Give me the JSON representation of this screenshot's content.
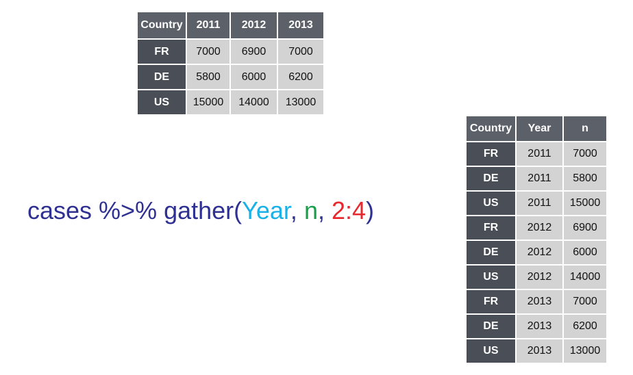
{
  "wide_table": {
    "headers": [
      "Country",
      "2011",
      "2012",
      "2013"
    ],
    "rows": [
      [
        "FR",
        "7000",
        "6900",
        "7000"
      ],
      [
        "DE",
        "5800",
        "6000",
        "6200"
      ],
      [
        "US",
        "15000",
        "14000",
        "13000"
      ]
    ]
  },
  "code": {
    "prefix": "cases %>% gather(",
    "arg_key": "Year",
    "sep1": ", ",
    "arg_value": "n",
    "sep2": ", ",
    "arg_cols": "2:4",
    "suffix": ")",
    "colors": {
      "default": "#2e3192",
      "key": "#1ab0e8",
      "value": "#1b9e4b",
      "cols": "#e8282d"
    }
  },
  "long_table": {
    "headers": [
      "Country",
      "Year",
      "n"
    ],
    "rows": [
      [
        "FR",
        "2011",
        "7000"
      ],
      [
        "DE",
        "2011",
        "5800"
      ],
      [
        "US",
        "2011",
        "15000"
      ],
      [
        "FR",
        "2012",
        "6900"
      ],
      [
        "DE",
        "2012",
        "6000"
      ],
      [
        "US",
        "2012",
        "14000"
      ],
      [
        "FR",
        "2013",
        "7000"
      ],
      [
        "DE",
        "2013",
        "6200"
      ],
      [
        "US",
        "2013",
        "13000"
      ]
    ]
  },
  "colors": {
    "header_bg": "#5c6068",
    "key_bg": "#4a4e56",
    "cell_bg": "#d3d3d3"
  }
}
